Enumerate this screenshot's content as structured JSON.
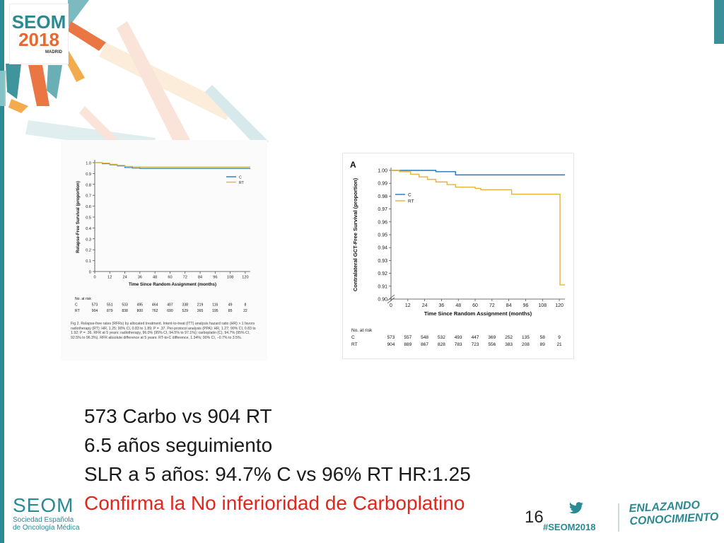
{
  "header": {
    "logo_brand": "SEOM",
    "logo_year": "2018",
    "logo_city": "MADRID"
  },
  "chart_data": [
    {
      "type": "line",
      "ylabel": "Relapse-Free Survival (proportion)",
      "xlabel": "Time Since Random Assignment (months)",
      "x_ticks": [
        0,
        12,
        24,
        36,
        48,
        60,
        72,
        84,
        96,
        108,
        120
      ],
      "y_ticks": [
        0,
        0.1,
        0.2,
        0.3,
        0.4,
        0.5,
        0.6,
        0.7,
        0.8,
        0.9,
        1.0
      ],
      "y_tick_labels": [
        "0",
        "0.1",
        "0.2",
        "0.3",
        "0.4",
        "0.5",
        "0.6",
        "0.7",
        "0.8",
        "0.9",
        "1.0"
      ],
      "xlim": [
        0,
        124
      ],
      "ylim": [
        0,
        1.0
      ],
      "legend_position": "top-right",
      "series": [
        {
          "name": "C",
          "color": "#1f77c4",
          "points": [
            [
              0,
              1.0
            ],
            [
              6,
              0.99
            ],
            [
              12,
              0.98
            ],
            [
              18,
              0.97
            ],
            [
              24,
              0.955
            ],
            [
              30,
              0.95
            ],
            [
              36,
              0.947
            ],
            [
              48,
              0.947
            ],
            [
              60,
              0.947
            ],
            [
              72,
              0.947
            ],
            [
              84,
              0.947
            ],
            [
              96,
              0.947
            ],
            [
              108,
              0.947
            ],
            [
              120,
              0.947
            ],
            [
              124,
              0.947
            ]
          ]
        },
        {
          "name": "RT",
          "color": "#e5b43a",
          "points": [
            [
              0,
              1.0
            ],
            [
              6,
              0.995
            ],
            [
              12,
              0.985
            ],
            [
              18,
              0.975
            ],
            [
              24,
              0.965
            ],
            [
              30,
              0.962
            ],
            [
              36,
              0.96
            ],
            [
              48,
              0.96
            ],
            [
              60,
              0.96
            ],
            [
              72,
              0.96
            ],
            [
              84,
              0.96
            ],
            [
              96,
              0.96
            ],
            [
              108,
              0.96
            ],
            [
              120,
              0.96
            ],
            [
              124,
              0.96
            ]
          ]
        }
      ],
      "at_risk": {
        "label": "No. at risk",
        "rows": [
          {
            "name": "C",
            "values": [
              "573",
              "551",
              "533",
              "495",
              "464",
              "407",
              "338",
              "219",
              "116",
              "49",
              "8"
            ]
          },
          {
            "name": "RT",
            "values": [
              "904",
              "879",
              "838",
              "800",
              "762",
              "690",
              "529",
              "365",
              "195",
              "85",
              "22"
            ]
          }
        ]
      },
      "caption": "Fig 2. Relapse-free rates (RFRs) by allocated treatment. Intent-to-treat (ITT) analysis hazard ratio (HR) > 1 favors radiotherapy (RT): HR, 1.25; 90% CI, 0.83 to 1.89; P = .37. Per-protocol analysis (PPA): HR, 1.27; 90% CI, 0.83 to 1.92; P = .36. RFR at 5 years: radiotherapy, 96.0% (95% CI, 94.5% to 97.1%); carboplatin (C), 94.7% (95% CI, 92.5% to 96.3%). RFR absolute difference at 5 years: RT-to-C difference, 1.34%; 90% CI, −0.7% to 3.5%."
    },
    {
      "type": "line",
      "panel_label": "A",
      "ylabel": "Contralateral GCT-Free Survival (proportion)",
      "xlabel": "Time Since Random Assignment (months)",
      "x_ticks": [
        0,
        12,
        24,
        36,
        48,
        60,
        72,
        84,
        96,
        108,
        120
      ],
      "y_ticks": [
        0.9,
        0.91,
        0.92,
        0.93,
        0.94,
        0.95,
        0.96,
        0.97,
        0.98,
        0.99,
        1.0
      ],
      "y_tick_labels": [
        "0.90",
        "0.91",
        "0.92",
        "0.93",
        "0.94",
        "0.95",
        "0.96",
        "0.97",
        "0.98",
        "0.99",
        "1.00"
      ],
      "axis_break": true,
      "xlim": [
        0,
        124
      ],
      "ylim": [
        0.9,
        1.0
      ],
      "legend_position": "top-left",
      "series": [
        {
          "name": "C",
          "color": "#1f77c4",
          "points": [
            [
              0,
              1.0
            ],
            [
              30,
              1.0
            ],
            [
              32,
              0.999
            ],
            [
              44,
              0.999
            ],
            [
              46,
              0.9965
            ],
            [
              124,
              0.9965
            ]
          ]
        },
        {
          "name": "RT",
          "color": "#e5b43a",
          "points": [
            [
              0,
              1.0
            ],
            [
              6,
              0.999
            ],
            [
              14,
              0.997
            ],
            [
              20,
              0.995
            ],
            [
              26,
              0.993
            ],
            [
              32,
              0.991
            ],
            [
              40,
              0.989
            ],
            [
              46,
              0.987
            ],
            [
              60,
              0.986
            ],
            [
              64,
              0.985
            ],
            [
              84,
              0.985
            ],
            [
              86,
              0.9815
            ],
            [
              120,
              0.9815
            ],
            [
              120.5,
              0.911
            ],
            [
              124,
              0.911
            ]
          ]
        }
      ],
      "at_risk": {
        "label": "No. at risk",
        "rows": [
          {
            "name": "C",
            "values": [
              "573",
              "557",
              "548",
              "532",
              "493",
              "447",
              "369",
              "252",
              "135",
              "58",
              "9"
            ]
          },
          {
            "name": "RT",
            "values": [
              "904",
              "889",
              "867",
              "828",
              "783",
              "723",
              "556",
              "383",
              "208",
              "89",
              "21"
            ]
          }
        ]
      }
    }
  ],
  "bullets": {
    "line1": "573 Carbo vs 904 RT",
    "line2": "6.5 años seguimiento",
    "line3": "SLR a 5 años: 94.7% C vs 96% RT HR:1.25",
    "line4": "Confirma la No inferioridad de Carboplatino"
  },
  "footer": {
    "page_number": "16",
    "hashtag": "#SEOM2018",
    "tagline_1": "ENLAZANDO",
    "tagline_2": "CONOCIMIENTO",
    "org_name": "SEOM",
    "org_sub_1": "Sociedad Española",
    "org_sub_2": "de Oncología Médica",
    "twitter_icon": "twitter-bird-icon",
    "accent_color": "#2a8a94",
    "highlight_color": "#e1261c"
  }
}
